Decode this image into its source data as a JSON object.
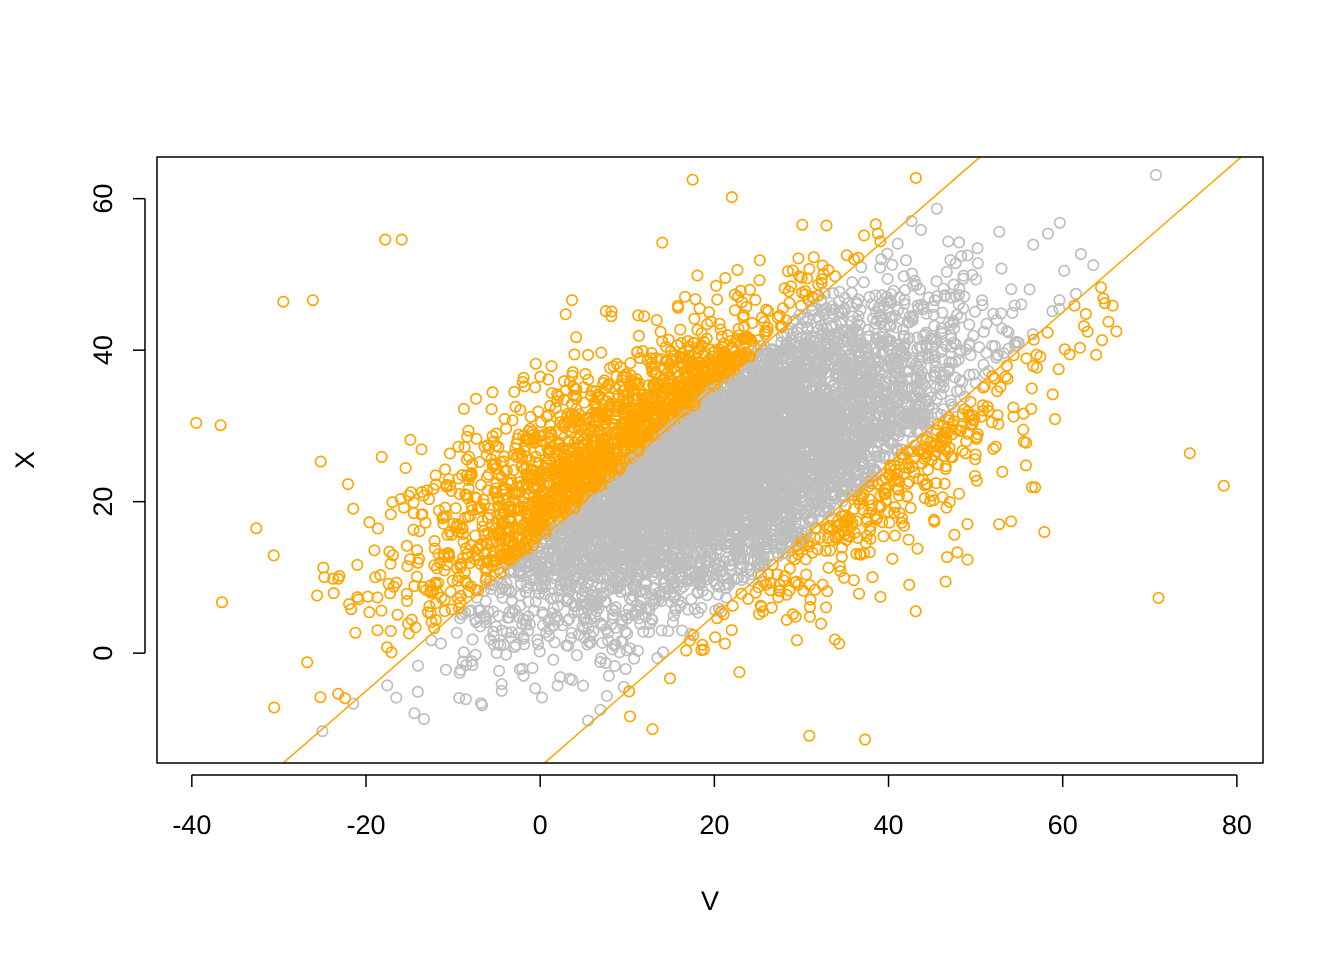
{
  "chart_data": {
    "type": "scatter",
    "title": "",
    "xlabel": "V",
    "ylabel": "X",
    "xlim": [
      -44,
      83
    ],
    "ylim": [
      -14.5,
      65.5
    ],
    "x_ticks": [
      -40,
      -20,
      0,
      20,
      40,
      60,
      80
    ],
    "y_ticks": [
      0,
      20,
      40,
      60
    ],
    "x_tick_labels": [
      "-40",
      "-20",
      "0",
      "20",
      "40",
      "60",
      "80"
    ],
    "y_tick_labels": [
      "0",
      "20",
      "40",
      "60"
    ],
    "grid": false,
    "legend": "none",
    "marker": "open-circle",
    "colors": {
      "inside_band": "#BEBEBE",
      "outside_band": "#FFA500",
      "lines": "#FFA500"
    },
    "lines": [
      {
        "slope": 1,
        "intercept": 15
      },
      {
        "slope": 1,
        "intercept": -15
      }
    ],
    "point_rule": "orange when |X - V| > 15, gray otherwise",
    "point_cloud": {
      "n": 8000,
      "V_mean": 20,
      "V_sd": 14,
      "X_mean": 25,
      "X_sd": 10,
      "correlation": 0.55
    },
    "notable_points": [
      {
        "V": -39.5,
        "X": 30.4
      },
      {
        "V": -36.7,
        "X": 30.1
      },
      {
        "V": -29.5,
        "X": 46.4
      },
      {
        "V": -26.1,
        "X": 46.6
      },
      {
        "V": -17.8,
        "X": 54.6
      },
      {
        "V": -15.9,
        "X": 54.6
      },
      {
        "V": 17.5,
        "X": 62.5
      },
      {
        "V": 22,
        "X": 60.2
      },
      {
        "V": 78.5,
        "X": 22.1
      },
      {
        "V": 74.6,
        "X": 26.4
      },
      {
        "V": 71,
        "X": 7.3
      },
      {
        "V": 37.3,
        "X": -11.4
      },
      {
        "V": 30.9,
        "X": -10.9
      },
      {
        "V": 5.5,
        "X": -8.9
      },
      {
        "V": -9.3,
        "X": -5.9
      },
      {
        "V": -6.8,
        "X": -6.6
      },
      {
        "V": -30.6,
        "X": 12.9
      },
      {
        "V": -32.6,
        "X": 16.5
      }
    ]
  }
}
